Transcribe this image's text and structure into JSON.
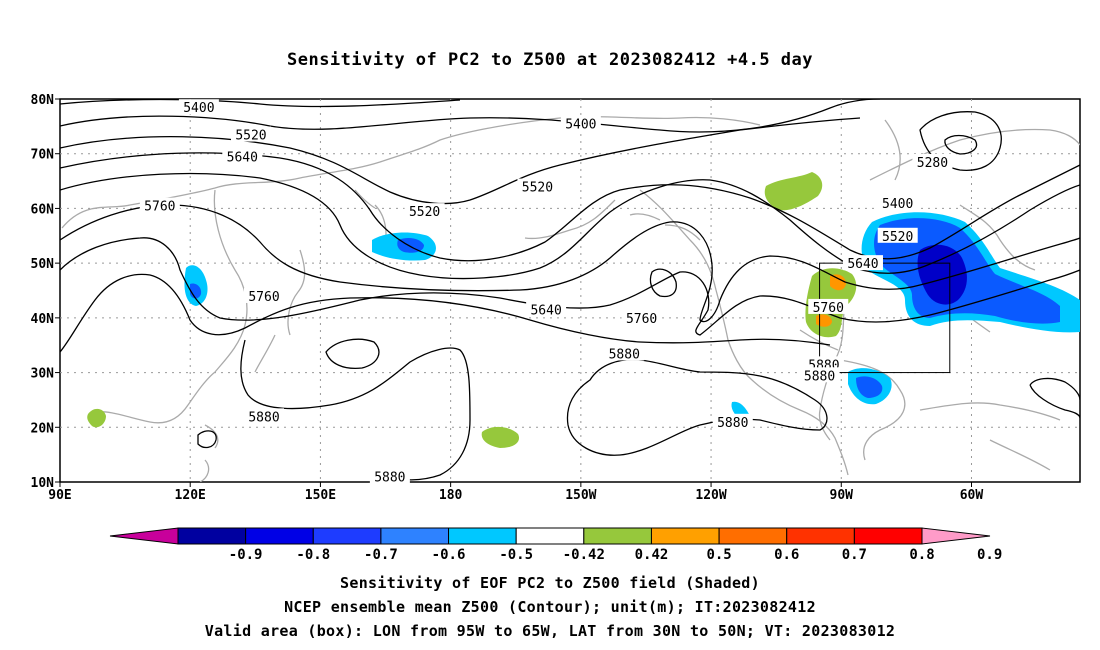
{
  "title": "Sensitivity of PC2 to Z500 at 2023082412 +4.5 day",
  "map": {
    "lat_labels": [
      "80N",
      "70N",
      "60N",
      "50N",
      "40N",
      "30N",
      "20N",
      "10N"
    ],
    "lon_labels": [
      "90E",
      "120E",
      "150E",
      "180",
      "150W",
      "120W",
      "90W",
      "60W"
    ],
    "contour_labels": [
      {
        "text": "5400",
        "lon": 122,
        "lat": 78.5
      },
      {
        "text": "5400",
        "lon": 210,
        "lat": 75.5
      },
      {
        "text": "5520",
        "lon": 134,
        "lat": 73.5
      },
      {
        "text": "5640",
        "lon": 132,
        "lat": 69.5
      },
      {
        "text": "5760",
        "lon": 113,
        "lat": 60.5
      },
      {
        "text": "5520",
        "lon": 174,
        "lat": 59.5
      },
      {
        "text": "5520",
        "lon": 200,
        "lat": 64
      },
      {
        "text": "5640",
        "lon": 202,
        "lat": 41.5
      },
      {
        "text": "5760",
        "lon": 137,
        "lat": 44
      },
      {
        "text": "5760",
        "lon": 224,
        "lat": 40
      },
      {
        "text": "5880",
        "lon": 220,
        "lat": 33.5
      },
      {
        "text": "5880",
        "lon": 137,
        "lat": 22
      },
      {
        "text": "5880",
        "lon": 166,
        "lat": 11
      },
      {
        "text": "5880",
        "lon": 245,
        "lat": 21
      },
      {
        "text": "5400",
        "lon": 283,
        "lat": 61
      },
      {
        "text": "5520",
        "lon": 283,
        "lat": 55
      },
      {
        "text": "5640",
        "lon": 275,
        "lat": 50
      },
      {
        "text": "5760",
        "lon": 267,
        "lat": 42
      },
      {
        "text": "5880",
        "lon": 266,
        "lat": 31.5
      },
      {
        "text": "5880",
        "lon": 265,
        "lat": 29.5
      },
      {
        "text": "5280",
        "lon": 291,
        "lat": 68.5
      }
    ],
    "valid_box": {
      "lon_min": 265,
      "lon_max": 295,
      "lat_min": 30,
      "lat_max": 50
    },
    "colors": {
      "neg_strong": "#0000c8",
      "neg_mid": "#0a5aff",
      "neg_light": "#00c8ff",
      "pos_green": "#96c83c",
      "pos_orange": "#ff9600",
      "pos_red": "#ff4600",
      "contour": "#000000",
      "coast": "#aaaaaa"
    }
  },
  "colorbar": {
    "labels": [
      "-0.9",
      "-0.8",
      "-0.7",
      "-0.6",
      "-0.5",
      "-0.42",
      "0.42",
      "0.5",
      "0.6",
      "0.7",
      "0.8",
      "0.9"
    ],
    "colors": [
      "#c8009b",
      "#0000a0",
      "#0000e6",
      "#1e3cff",
      "#2e82ff",
      "#00c8ff",
      "#ffffff",
      "#96c83c",
      "#ffa000",
      "#ff6e00",
      "#ff3200",
      "#ff0000",
      "#ff9bc8"
    ]
  },
  "captions": [
    "Sensitivity of EOF PC2 to Z500 field (Shaded)",
    "NCEP ensemble mean Z500 (Contour); unit(m); IT:2023082412",
    "Valid area (box): LON from 95W to 65W, LAT from 30N to 50N; VT: 2023083012"
  ]
}
